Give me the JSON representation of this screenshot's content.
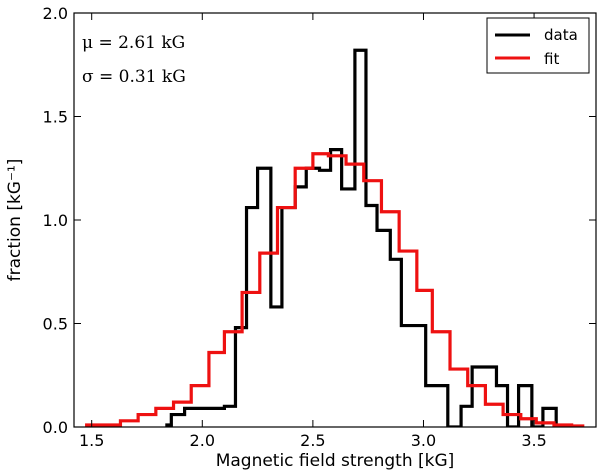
{
  "chart_data": {
    "type": "step-histogram",
    "xlabel": "Magnetic field strength [kG]",
    "ylabel": "fraction [kG⁻¹]",
    "xlim": [
      1.42,
      3.78
    ],
    "ylim": [
      0.0,
      2.0
    ],
    "xticks": [
      {
        "value": 1.5,
        "label": "1.5"
      },
      {
        "value": 2.0,
        "label": "2.0"
      },
      {
        "value": 2.5,
        "label": "2.5"
      },
      {
        "value": 3.0,
        "label": "3.0"
      },
      {
        "value": 3.5,
        "label": "3.5"
      }
    ],
    "yticks": [
      {
        "value": 0.0,
        "label": "0.0"
      },
      {
        "value": 0.5,
        "label": "0.5"
      },
      {
        "value": 1.0,
        "label": "1.0"
      },
      {
        "value": 1.5,
        "label": "1.5"
      },
      {
        "value": 2.0,
        "label": "2.0"
      }
    ],
    "annotations": [
      {
        "text": "μ  = 2.61 kG"
      },
      {
        "text": "σ  = 0.31 kG"
      }
    ],
    "legend": {
      "placement": "top-right",
      "entries": [
        "data",
        "fit"
      ]
    },
    "series": [
      {
        "name": "data",
        "color": "#000000",
        "x": [
          1.84,
          1.84,
          1.86,
          1.92,
          2.1,
          2.15,
          2.2,
          2.25,
          2.31,
          2.36,
          2.42,
          2.47,
          2.53,
          2.58,
          2.63,
          2.69,
          2.74,
          2.79,
          2.85,
          2.9,
          2.95,
          3.01,
          3.06,
          3.11,
          3.17,
          3.22,
          3.27,
          3.33,
          3.38,
          3.43,
          3.49,
          3.54,
          3.6
        ],
        "y": [
          0.0,
          0.01,
          0.06,
          0.09,
          0.1,
          0.48,
          1.06,
          1.25,
          0.58,
          1.06,
          1.16,
          1.25,
          1.24,
          1.34,
          1.15,
          1.82,
          1.07,
          0.95,
          0.81,
          0.49,
          0.49,
          0.2,
          0.2,
          0.0,
          0.1,
          0.29,
          0.29,
          0.2,
          0.0,
          0.2,
          0.0,
          0.09,
          0.0
        ]
      },
      {
        "name": "fit",
        "color": "#ee1111",
        "x": [
          1.47,
          1.55,
          1.63,
          1.71,
          1.79,
          1.87,
          1.95,
          2.03,
          2.1,
          2.18,
          2.26,
          2.34,
          2.42,
          2.5,
          2.57,
          2.65,
          2.73,
          2.81,
          2.89,
          2.97,
          3.04,
          3.12,
          3.2,
          3.28,
          3.36,
          3.44,
          3.51,
          3.59,
          3.67,
          3.72
        ],
        "y": [
          0.01,
          0.01,
          0.03,
          0.06,
          0.09,
          0.12,
          0.2,
          0.36,
          0.46,
          0.65,
          0.84,
          1.06,
          1.25,
          1.32,
          1.31,
          1.27,
          1.19,
          1.04,
          0.85,
          0.66,
          0.46,
          0.28,
          0.2,
          0.11,
          0.06,
          0.04,
          0.02,
          0.01,
          0.005,
          0.0
        ]
      }
    ]
  }
}
